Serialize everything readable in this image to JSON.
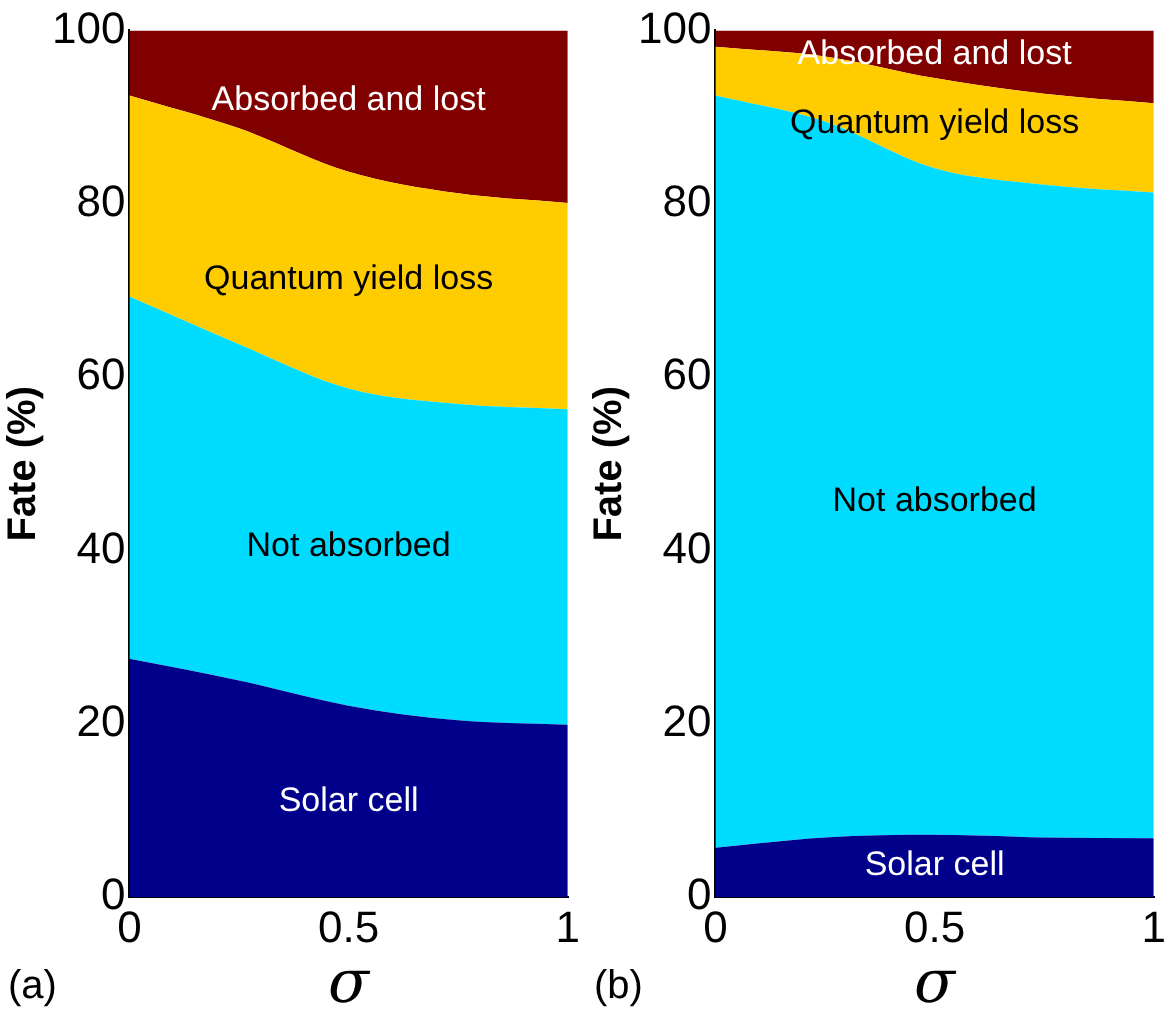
{
  "chart_data": [
    {
      "type": "area",
      "stacked": true,
      "xlabel": "σ",
      "ylabel": "Fate (%)",
      "annotations": [
        "(a)"
      ],
      "x": [
        0,
        0.25,
        0.5,
        0.75,
        1
      ],
      "xlim": [
        0,
        1
      ],
      "xticks": [
        0,
        0.5,
        1
      ],
      "ylim": [
        0,
        100
      ],
      "yticks": [
        0,
        20,
        40,
        60,
        80,
        100
      ],
      "grid": false,
      "series": [
        {
          "name": "Solar cell",
          "color": "#00008b",
          "values": [
            27.5,
            25,
            22.1,
            20.4,
            19.9
          ]
        },
        {
          "name": "Not absorbed",
          "color": "#00dcff",
          "values": [
            41.8,
            38.8,
            36.6,
            36.5,
            36.4
          ]
        },
        {
          "name": "Quantum yield loss",
          "color": "#ffcc00",
          "values": [
            23.2,
            24.9,
            25,
            24.3,
            23.8
          ]
        },
        {
          "name": "Absorbed and lost",
          "color": "#800000",
          "values": [
            7.5,
            11.3,
            16.3,
            18.8,
            19.9
          ]
        }
      ]
    },
    {
      "type": "area",
      "stacked": true,
      "xlabel": "σ",
      "ylabel": "Fate (%)",
      "annotations": [
        "(b)"
      ],
      "x": [
        0,
        0.25,
        0.5,
        0.75,
        1
      ],
      "xlim": [
        0,
        1
      ],
      "xticks": [
        0,
        0.5,
        1
      ],
      "ylim": [
        0,
        100
      ],
      "yticks": [
        0,
        20,
        40,
        60,
        80,
        100
      ],
      "grid": false,
      "series": [
        {
          "name": "Solar cell",
          "color": "#00008b",
          "values": [
            5.7,
            6.9,
            7.2,
            6.9,
            6.8
          ]
        },
        {
          "name": "Not absorbed",
          "color": "#00dcff",
          "values": [
            86.8,
            82.6,
            76.9,
            75.3,
            74.5
          ]
        },
        {
          "name": "Quantum yield loss",
          "color": "#ffcc00",
          "values": [
            5.6,
            7.5,
            10.4,
            10.5,
            10.3
          ]
        },
        {
          "name": "Absorbed and lost",
          "color": "#800000",
          "values": [
            1.9,
            3,
            5.5,
            7.3,
            8.4
          ]
        }
      ]
    }
  ]
}
